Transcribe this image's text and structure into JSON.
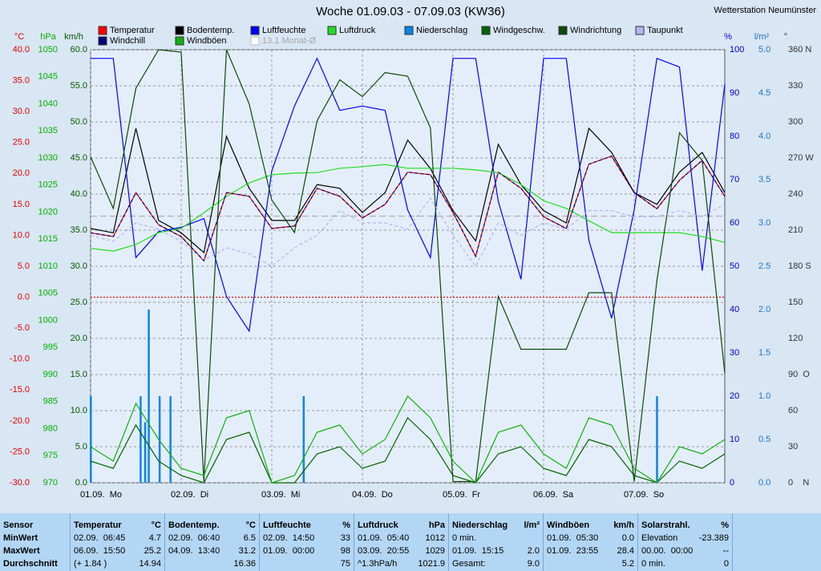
{
  "chart_data": {
    "type": "line",
    "title": "Woche 01.09.03 - 07.09.03 (KW36)",
    "subtitle": "Wetterstation Neumünster",
    "x": [
      0,
      0.25,
      0.5,
      0.75,
      1,
      1.25,
      1.5,
      1.75,
      2,
      2.25,
      2.5,
      2.75,
      3,
      3.25,
      3.5,
      3.75,
      4,
      4.25,
      4.5,
      4.75,
      5,
      5.25,
      5.5,
      5.75,
      6,
      6.25,
      6.5,
      6.75,
      7
    ],
    "xlim": [
      0,
      7
    ],
    "xticks": [
      {
        "value": 0,
        "label": "01.09.  Mo"
      },
      {
        "value": 1,
        "label": "02.09.  Di"
      },
      {
        "value": 2,
        "label": "03.09.  Mi"
      },
      {
        "value": 3,
        "label": "04.09.  Do"
      },
      {
        "value": 4,
        "label": "05.09.  Fr"
      },
      {
        "value": 5,
        "label": "06.09.  Sa"
      },
      {
        "value": 6,
        "label": "07.09.  So"
      }
    ],
    "grid": true,
    "y_axes": [
      {
        "id": "c",
        "label": "°C",
        "color": "#e00000",
        "side": "left",
        "ylim": [
          -30,
          40
        ],
        "yticks": [
          {
            "value": -30,
            "label": "-30.0"
          },
          {
            "value": -25,
            "label": "-25.0"
          },
          {
            "value": -20,
            "label": "-20.0"
          },
          {
            "value": -15,
            "label": "-15.0"
          },
          {
            "value": -10,
            "label": "-10.0"
          },
          {
            "value": -5,
            "label": "-5.0"
          },
          {
            "value": 0,
            "label": "0.0"
          },
          {
            "value": 5,
            "label": "5.0"
          },
          {
            "value": 10,
            "label": "10.0"
          },
          {
            "value": 15,
            "label": "15.0"
          },
          {
            "value": 20,
            "label": "20.0"
          },
          {
            "value": 25,
            "label": "25.0"
          },
          {
            "value": 30,
            "label": "30.0"
          },
          {
            "value": 35,
            "label": "35.0"
          },
          {
            "value": 40,
            "label": "40.0"
          }
        ]
      },
      {
        "id": "p",
        "label": "hPa",
        "color": "#00b000",
        "side": "left",
        "ylim": [
          970,
          1050
        ],
        "yticks": [
          970,
          975,
          980,
          985,
          990,
          995,
          1000,
          1005,
          1010,
          1015,
          1020,
          1025,
          1030,
          1035,
          1040,
          1045,
          1050
        ]
      },
      {
        "id": "k",
        "label": "km/h",
        "color": "#005a00",
        "side": "left",
        "ylim": [
          0,
          60
        ],
        "yticks": [
          {
            "value": 0,
            "label": "0.0"
          },
          {
            "value": 5,
            "label": "5.0"
          },
          {
            "value": 10,
            "label": "10.0"
          },
          {
            "value": 15,
            "label": "15.0"
          },
          {
            "value": 20,
            "label": "20.0"
          },
          {
            "value": 25,
            "label": "25.0"
          },
          {
            "value": 30,
            "label": "30.0"
          },
          {
            "value": 35,
            "label": "35.0"
          },
          {
            "value": 40,
            "label": "40.0"
          },
          {
            "value": 45,
            "label": "45.0"
          },
          {
            "value": 50,
            "label": "50.0"
          },
          {
            "value": 55,
            "label": "55.0"
          },
          {
            "value": 60,
            "label": "60.0"
          }
        ]
      },
      {
        "id": "h",
        "label": "%",
        "color": "#0000c8",
        "side": "right",
        "ylim": [
          0,
          100
        ],
        "yticks": [
          0,
          10,
          20,
          30,
          40,
          50,
          60,
          70,
          80,
          90,
          100
        ]
      },
      {
        "id": "r",
        "label": "l/m²",
        "color": "#1a78c8",
        "side": "right",
        "ylim": [
          0,
          5
        ],
        "yticks": [
          {
            "value": 0,
            "label": "0.0"
          },
          {
            "value": 0.5,
            "label": "0.5"
          },
          {
            "value": 1,
            "label": "1.0"
          },
          {
            "value": 1.5,
            "label": "1.5"
          },
          {
            "value": 2,
            "label": "2.0"
          },
          {
            "value": 2.5,
            "label": "2.5"
          },
          {
            "value": 3,
            "label": "3.0"
          },
          {
            "value": 3.5,
            "label": "3.5"
          },
          {
            "value": 4,
            "label": "4.0"
          },
          {
            "value": 4.5,
            "label": "4.5"
          },
          {
            "value": 5,
            "label": "5.0"
          }
        ]
      },
      {
        "id": "d",
        "label": "°",
        "color": "#333333",
        "side": "right",
        "ylim": [
          0,
          360
        ],
        "yticks": [
          {
            "value": 0,
            "label": "0    N"
          },
          30,
          60,
          {
            "value": 90,
            "label": "90  O"
          },
          120,
          150,
          {
            "value": 180,
            "label": "180 S"
          },
          210,
          240,
          {
            "value": 270,
            "label": "270 W"
          },
          300,
          330,
          {
            "value": 360,
            "label": "360 N"
          }
        ]
      }
    ],
    "series": [
      {
        "name": "Temperatur",
        "color": "#ff0000",
        "axis": "c",
        "values": [
          10.4,
          9.8,
          16.9,
          11.7,
          9.8,
          5.9,
          16.9,
          16.3,
          11.1,
          11.5,
          17.6,
          16.3,
          12.8,
          15.0,
          20.2,
          19.8,
          13.7,
          6.6,
          20.2,
          17.6,
          13.0,
          11.1,
          21.5,
          22.8,
          16.9,
          14.3,
          18.9,
          22.1,
          16.3
        ]
      },
      {
        "name": "Bodentemp.",
        "color": "#000000",
        "axis": "c",
        "values": [
          11.1,
          10.4,
          27.3,
          12.4,
          10.4,
          7.2,
          26.0,
          17.6,
          12.4,
          12.4,
          18.2,
          17.6,
          13.7,
          16.9,
          25.4,
          20.8,
          14.0,
          9.1,
          24.7,
          18.2,
          14.0,
          12.0,
          27.3,
          23.4,
          16.9,
          15.0,
          20.2,
          23.4,
          16.9
        ]
      },
      {
        "name": "Luftfeuchte",
        "color": "#0000ff",
        "axis": "h",
        "values": [
          98,
          98,
          52,
          58,
          59,
          61,
          43,
          35,
          72,
          87,
          98,
          86,
          87,
          86,
          63,
          52,
          98,
          98,
          65,
          47,
          98,
          98,
          56,
          38,
          63,
          98,
          96,
          49,
          92
        ]
      },
      {
        "name": "Luftdruck",
        "color": "#22dd22",
        "axis": "p",
        "values": [
          1013.3,
          1012.8,
          1014,
          1016.2,
          1017,
          1019.9,
          1022.9,
          1025.4,
          1026.9,
          1027.2,
          1027.3,
          1028.1,
          1028.4,
          1028.8,
          1028.1,
          1028.1,
          1028.1,
          1027.8,
          1027.3,
          1025.1,
          1022.1,
          1020.7,
          1018.4,
          1016.2,
          1016.2,
          1016.2,
          1016.2,
          1015.5,
          1014.4
        ]
      },
      {
        "name": "Niederschlag",
        "color": "#0a84e8",
        "axis": "r",
        "kind": "bar",
        "x": [
          0,
          0.55,
          0.6,
          0.64,
          0.76,
          0.88,
          2.35,
          6.25
        ],
        "values": [
          1.0,
          1.0,
          0.7,
          2.0,
          1.0,
          1.0,
          1.0,
          1.0
        ]
      },
      {
        "name": "Windgeschw.",
        "color": "#006400",
        "axis": "k",
        "values": [
          3,
          2,
          8,
          3,
          1,
          0,
          6,
          7,
          0,
          0,
          4,
          5,
          2,
          3,
          9,
          6,
          1,
          0,
          4,
          5,
          2,
          1,
          6,
          5,
          1,
          0,
          3,
          2,
          4
        ]
      },
      {
        "name": "Windrichtung",
        "color": "#0a4a0a",
        "axis": "d",
        "values": [
          271,
          228,
          328,
          360,
          358,
          1,
          360,
          315,
          235,
          208,
          301,
          335,
          321,
          341,
          338,
          295,
          1,
          1,
          155,
          111,
          111,
          111,
          158,
          158,
          1,
          168,
          291,
          268,
          91
        ]
      },
      {
        "name": "Taupunkt",
        "color": "#b4b4f0",
        "axis": "c",
        "dash": true,
        "values": [
          10,
          9,
          12,
          11,
          9,
          6,
          8,
          7,
          5,
          8,
          10,
          14,
          12,
          12,
          11,
          16,
          10,
          5,
          12,
          10,
          12,
          11,
          14,
          14,
          13,
          13,
          14,
          13,
          15
        ]
      },
      {
        "name": "Windchill",
        "color": "#000080",
        "axis": "c",
        "dash": true,
        "values": [
          10.4,
          9.8,
          16.9,
          11.7,
          9.8,
          5.9,
          16.9,
          16.3,
          11.1,
          11.5,
          17.6,
          16.3,
          12.8,
          15.0,
          20.2,
          19.8,
          13.7,
          6.6,
          20.2,
          17.6,
          13.0,
          11.1,
          21.5,
          22.8,
          16.9,
          14.3,
          18.9,
          22.1,
          16.3
        ]
      },
      {
        "name": "Windböen",
        "color": "#10b010",
        "axis": "k",
        "values": [
          5,
          3,
          11,
          6,
          2,
          1,
          9,
          10,
          0,
          1,
          7,
          8,
          4,
          6,
          12,
          9,
          3,
          0,
          7,
          8,
          4,
          2,
          9,
          8,
          2,
          0,
          5,
          4,
          6
        ]
      }
    ],
    "reference_lines": [
      {
        "name": "13.1 Monat-Ø",
        "value": 13.1,
        "axis": "c",
        "color": "#b0b0b0"
      },
      {
        "value": 0,
        "axis": "c",
        "color": "#e00000"
      }
    ]
  },
  "table": {
    "row_labels": [
      "Sensor",
      "MinWert",
      "MaxWert",
      "Durchschnitt"
    ],
    "columns": [
      {
        "name": "Temperatur",
        "unit": "°C",
        "rows": [
          {
            "label": "02.09.  06:45",
            "value": "4.7"
          },
          {
            "label": "06.09.  15:50",
            "value": "25.2"
          },
          {
            "label": "(+ 1.84 )",
            "value": "14.94"
          }
        ]
      },
      {
        "name": "Bodentemp.",
        "unit": "°C",
        "rows": [
          {
            "label": "02.09.  06:40",
            "value": "6.5"
          },
          {
            "label": "04.09.  13:40",
            "value": "31.2"
          },
          {
            "value": "16.36"
          }
        ]
      },
      {
        "name": "Luftfeuchte",
        "unit": "%",
        "rows": [
          {
            "label": "02.09.  14:50",
            "value": "33"
          },
          {
            "label": "01.09.  00:00",
            "value": "98"
          },
          {
            "value": "75"
          }
        ]
      },
      {
        "name": "Luftdruck",
        "unit": "hPa",
        "rows": [
          {
            "label": "01.09.  05:40",
            "value": "1012"
          },
          {
            "label": "03.09.  20:55",
            "value": "1029"
          },
          {
            "label": "^1.3hPa/h",
            "value": "1021.9"
          }
        ]
      },
      {
        "name": "Niederschlag",
        "unit": "l/m²",
        "rows": [
          {
            "label": "0 min."
          },
          {
            "label": "01.09.  15:15",
            "value": "2.0"
          },
          {
            "label": "Gesamt:",
            "value": "9.0"
          }
        ]
      },
      {
        "name": "Windböen",
        "unit": "km/h",
        "rows": [
          {
            "label": "01.09.  05:30",
            "value": "0.0"
          },
          {
            "label": "01.09.  23:55",
            "value": "28.4"
          },
          {
            "value": "5.2"
          }
        ]
      },
      {
        "name": "Solarstrahl.",
        "unit": "%",
        "rows": [
          {
            "label": "Elevation",
            "value": "-23.389"
          },
          {
            "label": "00.00.  00:00",
            "value": "--"
          },
          {
            "label": "0 min.",
            "value": "0"
          }
        ]
      }
    ]
  }
}
